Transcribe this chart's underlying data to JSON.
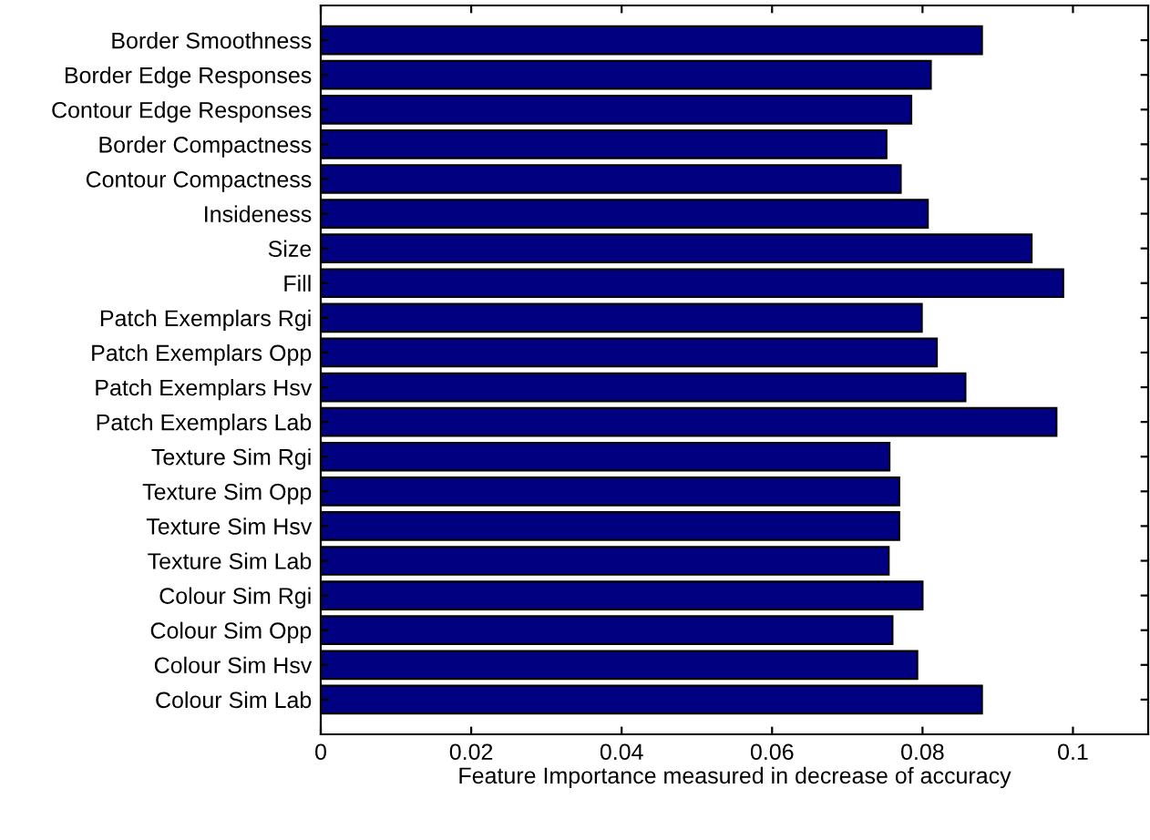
{
  "chart_data": {
    "type": "bar",
    "orientation": "horizontal",
    "xlabel": "Feature Importance measured in decrease of accuracy",
    "categories": [
      "Border Smoothness",
      "Border Edge Responses",
      "Contour Edge Responses",
      "Border Compactness",
      "Contour Compactness",
      "Insideness",
      "Size",
      "Fill",
      "Patch Exemplars Rgi",
      "Patch Exemplars Opp",
      "Patch Exemplars Hsv",
      "Patch Exemplars Lab",
      "Texture Sim Rgi",
      "Texture Sim Opp",
      "Texture Sim Hsv",
      "Texture Sim Lab",
      "Colour Sim Rgi",
      "Colour Sim Opp",
      "Colour Sim Hsv",
      "Colour Sim Lab"
    ],
    "values": [
      0.0879,
      0.0811,
      0.0785,
      0.0752,
      0.0771,
      0.0807,
      0.0945,
      0.0987,
      0.0799,
      0.0819,
      0.0857,
      0.0978,
      0.0756,
      0.0769,
      0.0769,
      0.0755,
      0.08,
      0.076,
      0.0793,
      0.0879
    ],
    "color": "#000080",
    "xlim": [
      0,
      0.11
    ],
    "xticks": [
      0,
      0.02,
      0.04,
      0.06,
      0.08,
      0.1
    ],
    "grid": false
  }
}
